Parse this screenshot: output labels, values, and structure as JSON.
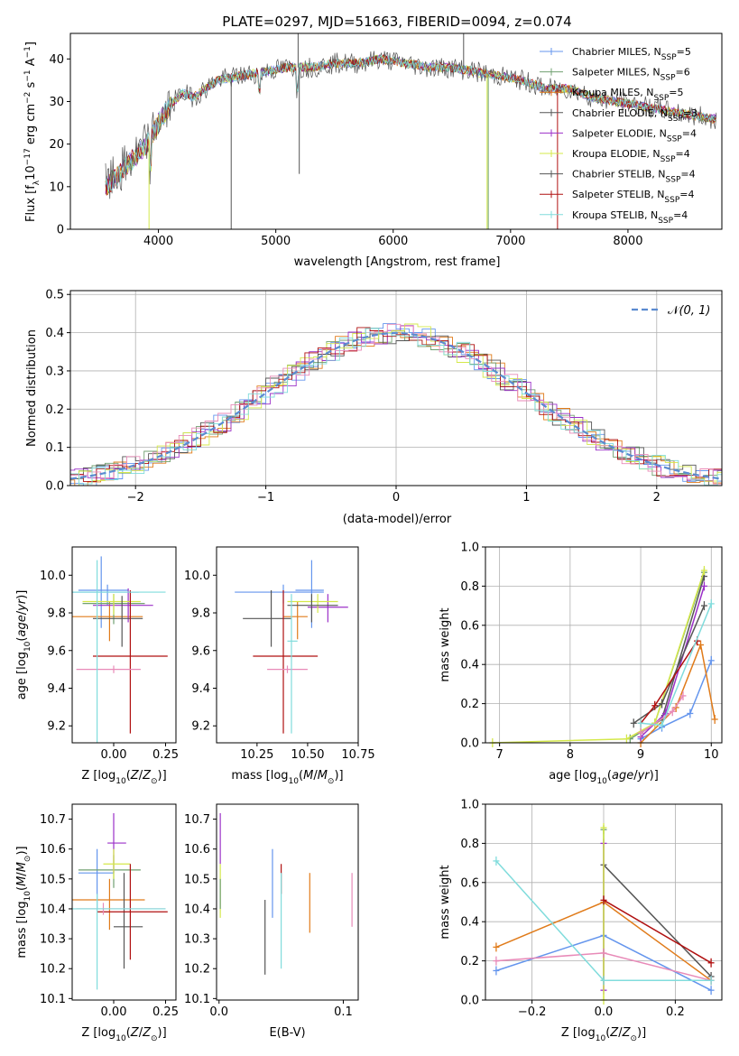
{
  "colors": {
    "cornflower": "#6495ed",
    "orange": "#e07b1a",
    "green": "#70a070",
    "gray": "#555555",
    "purple": "#9b30c8",
    "yellow": "#d4e84a",
    "darkred": "#b01010",
    "pink": "#e88ab8",
    "cyan": "#80dcdc"
  },
  "chart_data": [
    {
      "id": "spectrum",
      "type": "line",
      "title": "PLATE=0297, MJD=51663, FIBERID=0094, z=0.074",
      "xlabel": "wavelength [Angstrom, rest frame]",
      "ylabel": "Flux [f_λ 10^-17 erg cm^-2 s^-1 A^-1]",
      "xlim": [
        3250,
        8800
      ],
      "ylim": [
        0,
        46
      ],
      "xticks": [
        "4000",
        "5000",
        "6000",
        "7000",
        "8000"
      ],
      "yticks": [
        "0",
        "10",
        "20",
        "30",
        "40"
      ],
      "legend": [
        {
          "pre": "Chabrier MILES, N",
          "sub": "SSP",
          "post": "=5",
          "color": "cornflower"
        },
        {
          "pre": "Salpeter MILES, N",
          "sub": "SSP",
          "post": "=6",
          "color": "green"
        },
        {
          "pre": "Kroupa MILES, N",
          "sub": "SSP",
          "post": "=5",
          "color": "orange"
        },
        {
          "pre": "Chabrier ELODIE, N",
          "sub": "SSP",
          "post": "=3",
          "color": "gray"
        },
        {
          "pre": "Salpeter ELODIE, N",
          "sub": "SSP",
          "post": "=4",
          "color": "purple"
        },
        {
          "pre": "Kroupa ELODIE, N",
          "sub": "SSP",
          "post": "=4",
          "color": "yellow"
        },
        {
          "pre": "Chabrier STELIB, N",
          "sub": "SSP",
          "post": "=4",
          "color": "gray"
        },
        {
          "pre": "Salpeter STELIB, N",
          "sub": "SSP",
          "post": "=4",
          "color": "darkred"
        },
        {
          "pre": "Kroupa STELIB, N",
          "sub": "SSP",
          "post": "=4",
          "color": "cyan"
        }
      ],
      "legend_position": "upper-right",
      "continuum": [
        [
          3550,
          10
        ],
        [
          3700,
          14
        ],
        [
          3800,
          17
        ],
        [
          3900,
          20
        ],
        [
          4000,
          25
        ],
        [
          4100,
          29
        ],
        [
          4200,
          32
        ],
        [
          4300,
          31
        ],
        [
          4400,
          33
        ],
        [
          4500,
          35
        ],
        [
          4700,
          36
        ],
        [
          4900,
          37
        ],
        [
          5100,
          38
        ],
        [
          5300,
          38
        ],
        [
          5500,
          39
        ],
        [
          5700,
          39
        ],
        [
          5900,
          40
        ],
        [
          6100,
          39
        ],
        [
          6300,
          38
        ],
        [
          6500,
          38
        ],
        [
          6700,
          37
        ],
        [
          6900,
          36
        ],
        [
          7100,
          35
        ],
        [
          7300,
          33
        ],
        [
          7500,
          33
        ],
        [
          7700,
          31
        ],
        [
          7900,
          30
        ],
        [
          8100,
          29
        ],
        [
          8300,
          28
        ],
        [
          8500,
          27
        ],
        [
          8700,
          26
        ]
      ]
    },
    {
      "id": "residuals",
      "type": "line",
      "xlabel": "(data-model)/error",
      "ylabel": "Normed distribution",
      "xlim": [
        -2.5,
        2.5
      ],
      "ylim": [
        0,
        0.51
      ],
      "xticks": [
        "−2",
        "−1",
        "0",
        "1",
        "2"
      ],
      "yticks": [
        "0.0",
        "0.1",
        "0.2",
        "0.3",
        "0.4",
        "0.5"
      ],
      "legend": "N(0,1)",
      "grid": true
    },
    {
      "id": "age_vs_Z",
      "type": "scatter",
      "xlabel": "Z [log10(Z/Z⊙)]",
      "ylabel": "age  [log10(age/yr)]",
      "xlim": [
        -0.2,
        0.3
      ],
      "ylim": [
        9.11,
        10.15
      ],
      "xticks": [
        "0.00",
        "0.25"
      ],
      "yticks": [
        "9.2",
        "9.4",
        "9.6",
        "9.8",
        "10.0"
      ],
      "points": [
        {
          "c": "cornflower",
          "x": -0.06,
          "xe": [
            -0.17,
            0.07
          ],
          "y": 9.92,
          "ye": [
            9.72,
            10.1
          ]
        },
        {
          "c": "cornflower",
          "x": -0.03,
          "xe": [
            -0.2,
            0.12
          ],
          "y": 9.91,
          "ye": [
            9.84,
            9.95
          ]
        },
        {
          "c": "orange",
          "x": -0.02,
          "xe": [
            -0.2,
            0.14
          ],
          "y": 9.78,
          "ye": [
            9.65,
            9.86
          ]
        },
        {
          "c": "green",
          "x": 0.0,
          "xe": [
            -0.15,
            0.15
          ],
          "y": 9.85,
          "ye": [
            9.74,
            9.9
          ]
        },
        {
          "c": "purple",
          "x": 0.07,
          "xe": [
            -0.1,
            0.19
          ],
          "y": 9.84,
          "ye": [
            9.75,
            9.93
          ]
        },
        {
          "c": "yellow",
          "x": 0.0,
          "xe": [
            -0.15,
            0.13
          ],
          "y": 9.86,
          "ye": [
            9.79,
            9.9
          ]
        },
        {
          "c": "gray",
          "x": 0.04,
          "xe": [
            -0.1,
            0.14
          ],
          "y": 9.77,
          "ye": [
            9.62,
            9.89
          ]
        },
        {
          "c": "darkred",
          "x": 0.08,
          "xe": [
            -0.1,
            0.26
          ],
          "y": 9.57,
          "ye": [
            9.16,
            9.92
          ]
        },
        {
          "c": "pink",
          "x": 0.0,
          "xe": [
            -0.18,
            0.13
          ],
          "y": 9.5,
          "ye": [
            9.48,
            9.52
          ]
        },
        {
          "c": "cyan",
          "x": -0.08,
          "xe": [
            -0.2,
            0.25
          ],
          "y": 9.91,
          "ye": [
            9.11,
            10.08
          ]
        }
      ]
    },
    {
      "id": "age_vs_mass",
      "type": "scatter",
      "xlabel": "mass [log10(M/M⊙)]",
      "xlim": [
        10.05,
        10.75
      ],
      "ylim": [
        9.11,
        10.15
      ],
      "xticks": [
        "10.25",
        "10.50",
        "10.75"
      ],
      "yticks": [
        "9.2",
        "9.4",
        "9.6",
        "9.8",
        "10.0"
      ],
      "points": [
        {
          "c": "cornflower",
          "x": 10.52,
          "xe": [
            10.44,
            10.58
          ],
          "y": 9.92,
          "ye": [
            9.72,
            10.08
          ]
        },
        {
          "c": "cornflower",
          "x": 10.38,
          "xe": [
            10.14,
            10.58
          ],
          "y": 9.91,
          "ye": [
            9.85,
            9.95
          ]
        },
        {
          "c": "orange",
          "x": 10.45,
          "xe": [
            10.38,
            10.5
          ],
          "y": 9.78,
          "ye": [
            9.66,
            9.86
          ]
        },
        {
          "c": "purple",
          "x": 10.6,
          "xe": [
            10.5,
            10.7
          ],
          "y": 9.83,
          "ye": [
            9.75,
            9.9
          ]
        },
        {
          "c": "yellow",
          "x": 10.55,
          "xe": [
            10.4,
            10.65
          ],
          "y": 9.86,
          "ye": [
            9.8,
            9.9
          ]
        },
        {
          "c": "gray",
          "x": 10.52,
          "xe": [
            10.4,
            10.65
          ],
          "y": 9.84,
          "ye": [
            9.75,
            9.9
          ]
        },
        {
          "c": "gray",
          "x": 10.32,
          "xe": [
            10.18,
            10.42
          ],
          "y": 9.77,
          "ye": [
            9.62,
            9.92
          ]
        },
        {
          "c": "darkred",
          "x": 10.38,
          "xe": [
            10.23,
            10.55
          ],
          "y": 9.57,
          "ye": [
            9.16,
            9.92
          ]
        },
        {
          "c": "pink",
          "x": 10.4,
          "xe": [
            10.3,
            10.5
          ],
          "y": 9.5,
          "ye": [
            9.48,
            9.52
          ]
        },
        {
          "c": "cyan",
          "x": 10.42,
          "xe": [
            10.4,
            10.45
          ],
          "y": 9.65,
          "ye": [
            9.16,
            9.9
          ]
        }
      ]
    },
    {
      "id": "weight_vs_age",
      "type": "line",
      "xlabel": "age  [log10(age/yr)]",
      "ylabel": "mass weight",
      "xlim": [
        6.8,
        10.15
      ],
      "ylim": [
        0,
        1.0
      ],
      "xticks": [
        "7",
        "8",
        "9",
        "10"
      ],
      "yticks": [
        "0.0",
        "0.2",
        "0.4",
        "0.6",
        "0.8",
        "1.0"
      ],
      "grid": true,
      "series": [
        {
          "c": "cornflower",
          "x": [
            9.0,
            9.3,
            9.7,
            10.0
          ],
          "y": [
            0.02,
            0.08,
            0.15,
            0.42
          ]
        },
        {
          "c": "orange",
          "x": [
            9.0,
            9.5,
            9.85,
            10.05
          ],
          "y": [
            0.0,
            0.18,
            0.5,
            0.12
          ]
        },
        {
          "c": "green",
          "x": [
            8.85,
            9.2,
            9.9
          ],
          "y": [
            0.02,
            0.1,
            0.87
          ]
        },
        {
          "c": "gray",
          "x": [
            9.0,
            9.3,
            9.9
          ],
          "y": [
            0.05,
            0.12,
            0.85
          ]
        },
        {
          "c": "purple",
          "x": [
            9.0,
            9.35,
            9.9
          ],
          "y": [
            0.03,
            0.15,
            0.8
          ]
        },
        {
          "c": "yellow",
          "x": [
            6.9,
            8.8,
            9.2,
            9.9
          ],
          "y": [
            0.0,
            0.02,
            0.1,
            0.88
          ]
        },
        {
          "c": "gray",
          "x": [
            8.9,
            9.3,
            9.9
          ],
          "y": [
            0.1,
            0.2,
            0.7
          ]
        },
        {
          "c": "darkred",
          "x": [
            9.0,
            9.2,
            9.8
          ],
          "y": [
            0.1,
            0.19,
            0.52
          ]
        },
        {
          "c": "pink",
          "x": [
            9.0,
            9.45,
            9.6
          ],
          "y": [
            0.05,
            0.16,
            0.24
          ]
        },
        {
          "c": "cyan",
          "x": [
            9.0,
            9.3,
            10.0
          ],
          "y": [
            0.1,
            0.09,
            0.71
          ]
        }
      ]
    },
    {
      "id": "mass_vs_Z",
      "type": "scatter",
      "xlabel": "Z [log10(Z/Z⊙)]",
      "ylabel": "mass [log10(M/M⊙)]",
      "xlim": [
        -0.2,
        0.3
      ],
      "ylim": [
        10.095,
        10.75
      ],
      "xticks": [
        "0.00",
        "0.25"
      ],
      "yticks": [
        "10.1",
        "10.2",
        "10.3",
        "10.4",
        "10.5",
        "10.6",
        "10.7"
      ],
      "points": [
        {
          "c": "cornflower",
          "x": -0.08,
          "xe": [
            -0.17,
            0.0
          ],
          "y": 10.52,
          "ye": [
            10.4,
            10.6
          ]
        },
        {
          "c": "orange",
          "x": -0.02,
          "xe": [
            -0.2,
            0.15
          ],
          "y": 10.43,
          "ye": [
            10.33,
            10.5
          ]
        },
        {
          "c": "green",
          "x": 0.0,
          "xe": [
            -0.17,
            0.13
          ],
          "y": 10.53,
          "ye": [
            10.47,
            10.58
          ]
        },
        {
          "c": "purple",
          "x": 0.0,
          "xe": [
            -0.03,
            0.06
          ],
          "y": 10.62,
          "ye": [
            10.52,
            10.72
          ]
        },
        {
          "c": "yellow",
          "x": 0.0,
          "xe": [
            -0.05,
            0.08
          ],
          "y": 10.55,
          "ye": [
            10.5,
            10.6
          ]
        },
        {
          "c": "gray",
          "x": 0.05,
          "xe": [
            0.0,
            0.14
          ],
          "y": 10.34,
          "ye": [
            10.2,
            10.52
          ]
        },
        {
          "c": "darkred",
          "x": 0.08,
          "xe": [
            -0.08,
            0.26
          ],
          "y": 10.39,
          "ye": [
            10.23,
            10.55
          ]
        },
        {
          "c": "pink",
          "x": -0.05,
          "xe": [
            -0.18,
            0.25
          ],
          "y": 10.4,
          "ye": [
            10.38,
            10.42
          ]
        },
        {
          "c": "cyan",
          "x": -0.08,
          "xe": [
            -0.2,
            0.25
          ],
          "y": 10.4,
          "ye": [
            10.13,
            10.45
          ]
        }
      ]
    },
    {
      "id": "mass_vs_ebv",
      "type": "scatter",
      "xlabel": "E(B-V)",
      "xlim": [
        -0.002,
        0.112
      ],
      "ylim": [
        10.095,
        10.75
      ],
      "xticks": [
        "0.0",
        "0.1"
      ],
      "yticks": [
        "10.1",
        "10.2",
        "10.3",
        "10.4",
        "10.5",
        "10.6",
        "10.7"
      ],
      "points": [
        {
          "c": "purple",
          "x": 0.001,
          "ye": [
            10.55,
            10.72
          ]
        },
        {
          "c": "yellow",
          "x": 0.001,
          "ye": [
            10.37,
            10.55
          ]
        },
        {
          "c": "green",
          "x": 0.001,
          "ye": [
            10.4,
            10.5
          ]
        },
        {
          "c": "gray",
          "x": 0.037,
          "ye": [
            10.18,
            10.43
          ]
        },
        {
          "c": "cornflower",
          "x": 0.043,
          "ye": [
            10.37,
            10.6
          ]
        },
        {
          "c": "darkred",
          "x": 0.05,
          "ye": [
            10.45,
            10.55
          ]
        },
        {
          "c": "cyan",
          "x": 0.05,
          "ye": [
            10.2,
            10.52
          ]
        },
        {
          "c": "orange",
          "x": 0.073,
          "ye": [
            10.32,
            10.52
          ]
        },
        {
          "c": "pink",
          "x": 0.107,
          "ye": [
            10.34,
            10.52
          ]
        }
      ]
    },
    {
      "id": "weight_vs_Z",
      "type": "line",
      "xlabel": "Z [log10(Z/Z⊙)]",
      "ylabel": "mass weight",
      "xlim": [
        -0.33,
        0.33
      ],
      "ylim": [
        0,
        1.0
      ],
      "xticks": [
        "−0.2",
        "0.0",
        "0.2"
      ],
      "yticks": [
        "0.0",
        "0.2",
        "0.4",
        "0.6",
        "0.8",
        "1.0"
      ],
      "grid": true,
      "series": [
        {
          "c": "cornflower",
          "x": [
            -0.3,
            0.0,
            0.3
          ],
          "y": [
            0.15,
            0.33,
            0.05
          ]
        },
        {
          "c": "orange",
          "x": [
            -0.3,
            0.0,
            0.3
          ],
          "y": [
            0.27,
            0.5,
            0.1
          ]
        },
        {
          "c": "green",
          "x": [
            0.0,
            0.0
          ],
          "y": [
            0.1,
            0.87
          ]
        },
        {
          "c": "gray",
          "x": [
            0.0,
            0.3
          ],
          "y": [
            0.69,
            0.12
          ]
        },
        {
          "c": "purple",
          "x": [
            0.0,
            0.0
          ],
          "y": [
            0.05,
            0.8
          ]
        },
        {
          "c": "yellow",
          "x": [
            0.0,
            0.0
          ],
          "y": [
            0.0,
            0.88
          ]
        },
        {
          "c": "darkred",
          "x": [
            0.0,
            0.3
          ],
          "y": [
            0.51,
            0.19
          ]
        },
        {
          "c": "pink",
          "x": [
            -0.3,
            0.0,
            0.3
          ],
          "y": [
            0.2,
            0.24,
            0.1
          ]
        },
        {
          "c": "cyan",
          "x": [
            -0.3,
            0.0,
            0.3
          ],
          "y": [
            0.71,
            0.1,
            0.1
          ]
        }
      ]
    }
  ]
}
